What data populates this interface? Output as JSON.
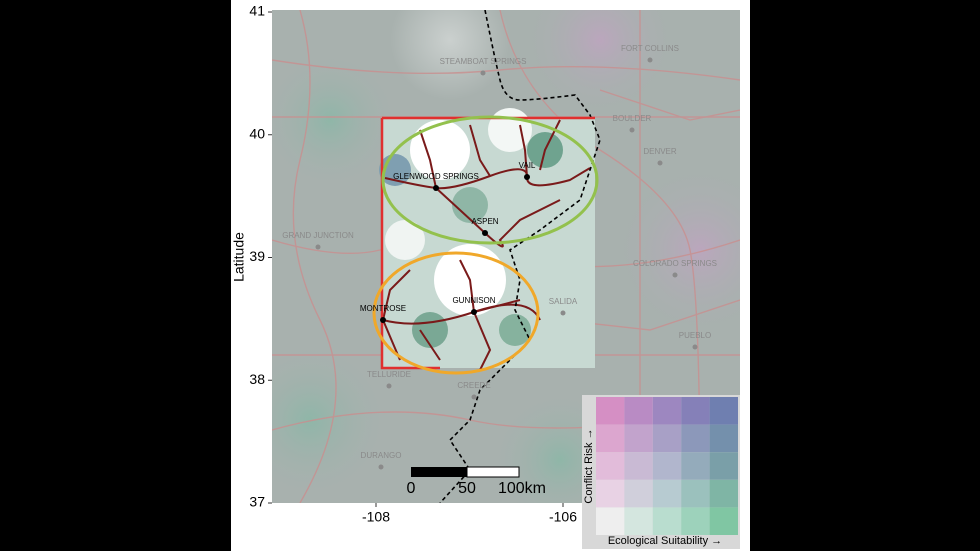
{
  "map": {
    "y_axis_label": "Latitude",
    "lat_ticks": [
      41,
      40,
      39,
      38,
      37
    ],
    "lon_ticks": [
      -108,
      -106
    ],
    "cities": [
      {
        "label": "STEAMBOAT SPRINGS"
      },
      {
        "label": "FORT COLLINS"
      },
      {
        "label": "BOULDER"
      },
      {
        "label": "DENVER"
      },
      {
        "label": "GRAND JUNCTION"
      },
      {
        "label": "GLENWOOD SPRINGS"
      },
      {
        "label": "VAIL"
      },
      {
        "label": "ASPEN"
      },
      {
        "label": "COLORADO SPRINGS"
      },
      {
        "label": "MONTROSE"
      },
      {
        "label": "GUNNISON"
      },
      {
        "label": "SALIDA"
      },
      {
        "label": "PUEBLO"
      },
      {
        "label": "TELLURIDE"
      },
      {
        "label": "CREEDE"
      },
      {
        "label": "DURANGO"
      }
    ],
    "scale_bar": {
      "labels": [
        "0",
        "50",
        "100km"
      ]
    },
    "legend": {
      "y_label": "Conflict Risk →",
      "x_label": "Ecological Suitability →"
    }
  }
}
